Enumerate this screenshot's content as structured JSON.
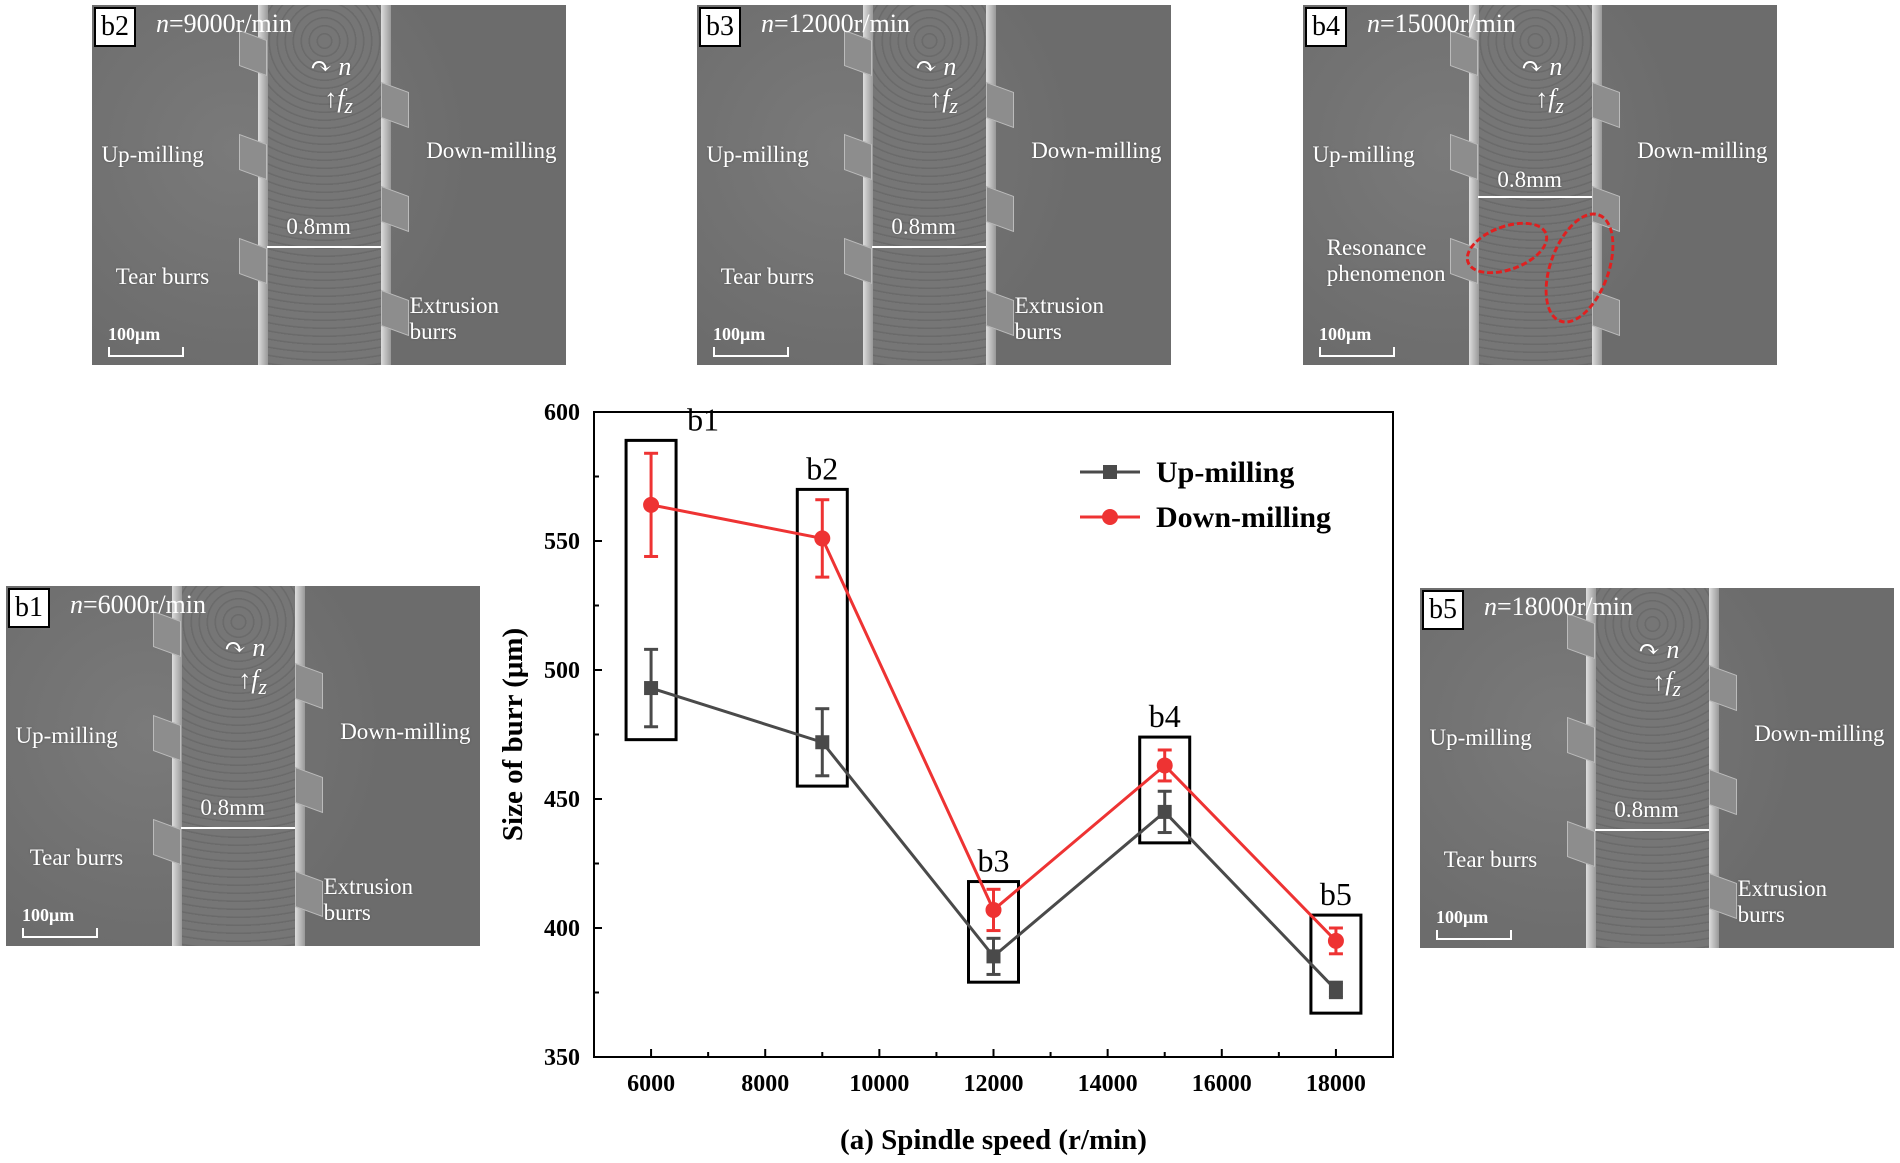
{
  "panels": [
    {
      "id": "b2",
      "speed_var": "n",
      "speed_value": "=9000r/min",
      "up": "Up-milling",
      "down": "Down-milling",
      "width": "0.8mm",
      "tear": "Tear burrs",
      "extrusion": "Extrusion burrs",
      "scale": "100μm",
      "rotation": "n",
      "feed": "f",
      "feed_sub": "z"
    },
    {
      "id": "b3",
      "speed_var": "n",
      "speed_value": "=12000r/min",
      "up": "Up-milling",
      "down": "Down-milling",
      "width": "0.8mm",
      "tear": "Tear burrs",
      "extrusion": "Extrusion burrs",
      "scale": "100μm",
      "rotation": "n",
      "feed": "f",
      "feed_sub": "z"
    },
    {
      "id": "b4",
      "speed_var": "n",
      "speed_value": "=15000r/min",
      "up": "Up-milling",
      "down": "Down-milling",
      "width": "0.8mm",
      "resonance": "Resonance phenomenon",
      "scale": "100μm",
      "rotation": "n",
      "feed": "f",
      "feed_sub": "z"
    },
    {
      "id": "b1",
      "speed_var": "n",
      "speed_value": "=6000r/min",
      "up": "Up-milling",
      "down": "Down-milling",
      "width": "0.8mm",
      "tear": "Tear burrs",
      "extrusion": "Extrusion burrs",
      "scale": "100μm",
      "rotation": "n",
      "feed": "f",
      "feed_sub": "z"
    },
    {
      "id": "b5",
      "speed_var": "n",
      "speed_value": "=18000r/min",
      "up": "Up-milling",
      "down": "Down-milling",
      "width": "0.8mm",
      "tear": "Tear burrs",
      "extrusion": "Extrusion burrs",
      "scale": "100μm",
      "rotation": "n",
      "feed": "f",
      "feed_sub": "z"
    }
  ],
  "chart_data": {
    "type": "line",
    "xlabel": "(a) Spindle speed (r/min)",
    "ylabel": "Size of burr (μm)",
    "x": [
      6000,
      9000,
      12000,
      15000,
      18000
    ],
    "xlim": [
      5000,
      19000
    ],
    "ylim": [
      350,
      600
    ],
    "xticks": [
      6000,
      8000,
      10000,
      12000,
      14000,
      16000,
      18000
    ],
    "yticks": [
      350,
      400,
      450,
      500,
      550,
      600
    ],
    "legend_position": "top-right",
    "series": [
      {
        "name": "Up-milling",
        "color": "#4a4a4a",
        "marker": "square",
        "values": [
          493,
          472,
          389,
          445,
          376
        ],
        "errors": [
          15,
          13,
          7,
          8,
          3
        ]
      },
      {
        "name": "Down-milling",
        "color": "#ee3333",
        "marker": "circle",
        "values": [
          564,
          551,
          407,
          463,
          395
        ],
        "errors": [
          20,
          15,
          8,
          6,
          5
        ]
      }
    ],
    "annotations": [
      {
        "label": "b1",
        "x": 6000,
        "range": [
          473,
          589
        ]
      },
      {
        "label": "b2",
        "x": 9000,
        "range": [
          455,
          570
        ]
      },
      {
        "label": "b3",
        "x": 12000,
        "range": [
          379,
          418
        ]
      },
      {
        "label": "b4",
        "x": 15000,
        "range": [
          433,
          474
        ]
      },
      {
        "label": "b5",
        "x": 18000,
        "range": [
          367,
          405
        ]
      }
    ]
  }
}
